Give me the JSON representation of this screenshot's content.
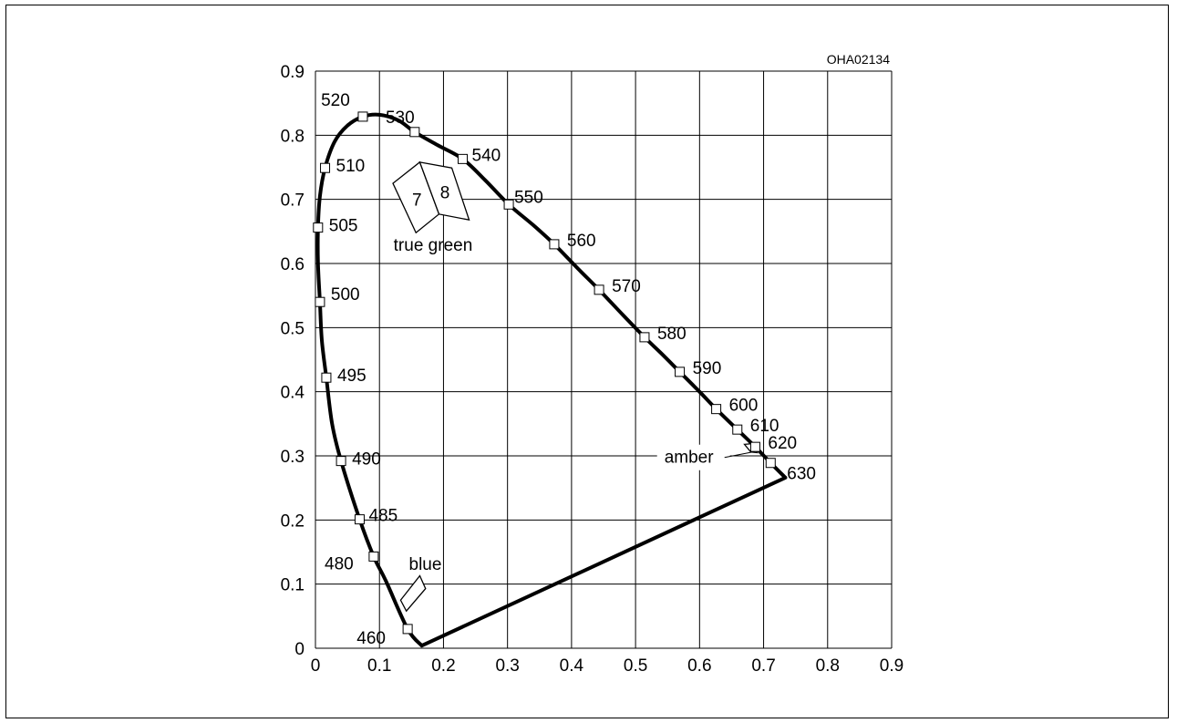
{
  "chart_data": {
    "type": "scatter",
    "title": "",
    "code": "OHA02134",
    "xlabel": "",
    "ylabel": "",
    "xlim": [
      0,
      0.9
    ],
    "ylim": [
      0,
      0.9
    ],
    "x_ticks": [
      "0",
      "0.1",
      "0.2",
      "0.3",
      "0.4",
      "0.5",
      "0.6",
      "0.7",
      "0.8",
      "0.9"
    ],
    "y_ticks": [
      "0",
      "0.1",
      "0.2",
      "0.3",
      "0.4",
      "0.5",
      "0.6",
      "0.7",
      "0.8",
      "0.9"
    ],
    "grid": true,
    "locus_points": [
      {
        "nm": "460",
        "x": 0.144,
        "y": 0.03
      },
      {
        "nm": "480",
        "x": 0.091,
        "y": 0.143
      },
      {
        "nm": "485",
        "x": 0.069,
        "y": 0.201
      },
      {
        "nm": "490",
        "x": 0.04,
        "y": 0.292
      },
      {
        "nm": "495",
        "x": 0.017,
        "y": 0.422
      },
      {
        "nm": "500",
        "x": 0.007,
        "y": 0.54
      },
      {
        "nm": "505",
        "x": 0.004,
        "y": 0.656
      },
      {
        "nm": "510",
        "x": 0.015,
        "y": 0.749
      },
      {
        "nm": "520",
        "x": 0.074,
        "y": 0.829
      },
      {
        "nm": "530",
        "x": 0.155,
        "y": 0.805
      },
      {
        "nm": "540",
        "x": 0.23,
        "y": 0.763
      },
      {
        "nm": "550",
        "x": 0.302,
        "y": 0.692
      },
      {
        "nm": "560",
        "x": 0.373,
        "y": 0.63
      },
      {
        "nm": "570",
        "x": 0.443,
        "y": 0.559
      },
      {
        "nm": "580",
        "x": 0.514,
        "y": 0.485
      },
      {
        "nm": "590",
        "x": 0.569,
        "y": 0.431
      },
      {
        "nm": "600",
        "x": 0.626,
        "y": 0.373
      },
      {
        "nm": "610",
        "x": 0.659,
        "y": 0.341
      },
      {
        "nm": "620",
        "x": 0.687,
        "y": 0.314
      },
      {
        "nm": "630",
        "x": 0.711,
        "y": 0.289
      }
    ],
    "locus_curve": [
      [
        0.166,
        0.004
      ],
      [
        0.144,
        0.03
      ],
      [
        0.11,
        0.105
      ],
      [
        0.091,
        0.143
      ],
      [
        0.069,
        0.201
      ],
      [
        0.04,
        0.292
      ],
      [
        0.026,
        0.35
      ],
      [
        0.017,
        0.422
      ],
      [
        0.01,
        0.48
      ],
      [
        0.007,
        0.54
      ],
      [
        0.004,
        0.6
      ],
      [
        0.004,
        0.656
      ],
      [
        0.007,
        0.705
      ],
      [
        0.015,
        0.749
      ],
      [
        0.03,
        0.79
      ],
      [
        0.05,
        0.815
      ],
      [
        0.074,
        0.829
      ],
      [
        0.1,
        0.832
      ],
      [
        0.13,
        0.823
      ],
      [
        0.155,
        0.805
      ],
      [
        0.19,
        0.785
      ],
      [
        0.23,
        0.763
      ],
      [
        0.265,
        0.73
      ],
      [
        0.302,
        0.692
      ],
      [
        0.34,
        0.66
      ],
      [
        0.373,
        0.63
      ],
      [
        0.41,
        0.592
      ],
      [
        0.443,
        0.559
      ],
      [
        0.48,
        0.52
      ],
      [
        0.514,
        0.485
      ],
      [
        0.54,
        0.46
      ],
      [
        0.569,
        0.431
      ],
      [
        0.6,
        0.4
      ],
      [
        0.626,
        0.373
      ],
      [
        0.659,
        0.341
      ],
      [
        0.687,
        0.314
      ],
      [
        0.711,
        0.289
      ],
      [
        0.734,
        0.266
      ]
    ],
    "purple_line": [
      [
        0.734,
        0.266
      ],
      [
        0.166,
        0.004
      ]
    ],
    "regions": [
      {
        "name": "true-green-7",
        "text": "7",
        "polygon": [
          [
            0.121,
            0.725
          ],
          [
            0.163,
            0.758
          ],
          [
            0.193,
            0.677
          ],
          [
            0.157,
            0.648
          ]
        ]
      },
      {
        "name": "true-green-8",
        "text": "8",
        "polygon": [
          [
            0.163,
            0.758
          ],
          [
            0.213,
            0.749
          ],
          [
            0.24,
            0.668
          ],
          [
            0.193,
            0.677
          ]
        ]
      },
      {
        "name": "blue",
        "text": "",
        "polygon": [
          [
            0.133,
            0.075
          ],
          [
            0.163,
            0.113
          ],
          [
            0.172,
            0.093
          ],
          [
            0.142,
            0.058
          ]
        ]
      },
      {
        "name": "amber",
        "text": "",
        "polygon": [
          [
            0.67,
            0.318
          ],
          [
            0.682,
            0.319
          ],
          [
            0.69,
            0.305
          ],
          [
            0.68,
            0.306
          ]
        ]
      }
    ],
    "annotations": [
      {
        "name": "true-green",
        "text": "true green",
        "x": 0.122,
        "y": 0.62
      },
      {
        "name": "blue",
        "text": "blue",
        "x": 0.146,
        "y": 0.122
      },
      {
        "name": "amber",
        "text": "amber",
        "x": 0.545,
        "y": 0.289
      }
    ]
  }
}
